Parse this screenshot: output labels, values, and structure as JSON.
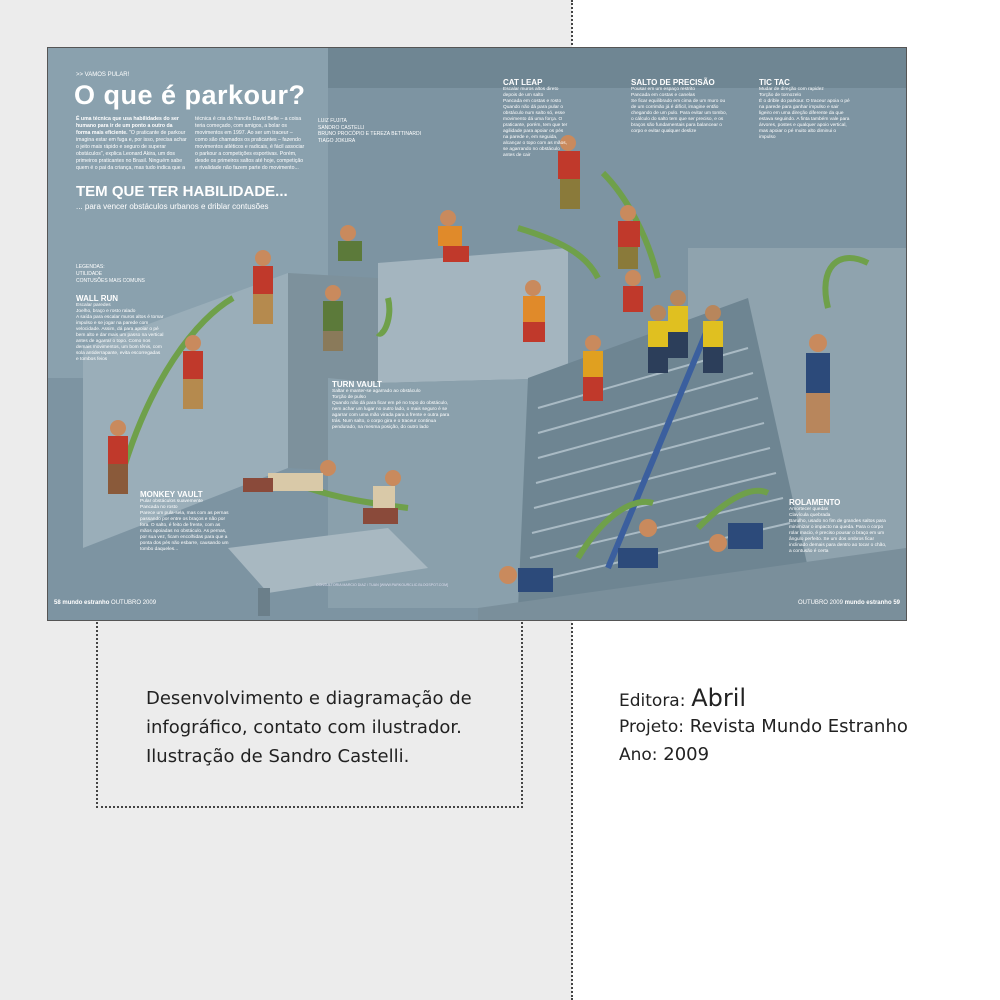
{
  "infographic": {
    "kicker": ">> VAMOS PULAR!",
    "title": "O que é parkour?",
    "intro_bold": "É uma técnica que usa habilidades do ser humano para ir de um ponto a outro da forma mais eficiente.",
    "intro_text": "\"O praticante de parkour imagina estar em fuga e, por isso, precisa achar o jeito mais rápido e seguro de superar obstáculos\", explica Leonard Akira, um dos primeiros praticantes no Brasil. Ninguém sabe quem é o pai da criança, mas tudo indica que a técnica é cria do francês David Belle – a coisa teria começado, com amigos, a bolar os movimentos em 1997. Ao ser um traceur – como são chamados os praticantes – fazendo movimentos atléticos e radicais, é fácil associar o parkour a competições esportivas. Porém, desde os primeiros saltos até hoje, competição e rivalidade não fazem parte do movimento...",
    "credits": [
      "LUIZ FUJITA",
      "SANDRO CASTELLI",
      "BRUNO PROCÓPIO E TEREZA BETTINARDI",
      "TIAGO JOKURA"
    ],
    "subhead": "TEM QUE TER HABILIDADE...",
    "subsubhead": "... para vencer obstáculos urbanos e driblar contusões",
    "legend": {
      "title": "LEGENDAS:",
      "items": [
        "UTILIDADE",
        "CONTUSÕES MAIS COMUNS"
      ]
    },
    "sections": [
      {
        "title": "WALL RUN",
        "utility": "Escalar paredes",
        "injury": "Joelho, braço e rosto ralado",
        "body": "A saída para escalar muros altos é tomar impulso e se jogar na parede com velocidade. Assim, dá para apoiar o pé bem alto e dar mais um passo na vertical antes de agarrar o topo. Como nos demais movimentos, um bom tênis, com sola antiderrapante, evita escorregadas e tombos feios"
      },
      {
        "title": "MONKEY VAULT",
        "utility": "Pular obstáculos suavemente",
        "injury": "Pancada no rosto",
        "body": "Parece um pula-sela, mas com as pernas passando por entre os braços e não por fora. O salto, é feito de frente, com as mãos apoiadas no obstáculo. As pernas, por sua vez, ficam encolhidas para que a ponta dos pés não esbarre, causando um tombo daqueles..."
      },
      {
        "title": "TURN VAULT",
        "utility": "Saltar e manter-se agarrado ao obstáculo",
        "injury": "Torção de pulso",
        "body": "Quando não dá para ficar em pé no topo do obstáculo, nem achar um lugar no outro lado, o mais seguro é se agarrar com uma mão virada para a frente e outra para trás. Num salto, o corpo gira e o traceur continua pendurado, na mesma posição, do outro lado"
      },
      {
        "title": "CAT LEAP",
        "utility": "Escalar muros altos direto depois de um salto",
        "injury": "Pancada em costas e rosto",
        "body": "Quando não dá para pular o obstáculo num salto só, esse movimento dá uma força. O praticante, porém, tem que ter agilidade para apoiar os pés na parede e, em seguida, alcançar o topo com as mãos, se agarrando no obstáculo antes de cair"
      },
      {
        "title": "SALTO DE PRECISÃO",
        "utility": "Pousar em um espaço restrito",
        "injury": "Pancada em costas e canelas",
        "body": "Se ficar equilibrado em cima de um muro ou de um corrimão já é difícil, imagine então chegando de um pulo. Para evitar um tombo, o cálculo do salto tem que ser preciso, e os braços são fundamentais para balancear o corpo e evitar qualquer deslize"
      },
      {
        "title": "TIC TAC",
        "utility": "Mudar de direção com rapidez",
        "injury": "Torção de tornozelo",
        "body": "É o drible do parkour. O traceur apoia o pé na parede para ganhar impulso e sair ligeiro em uma direção diferente da que estava seguindo. A finta também vale para árvores, postes e qualquer apoio vertical, mas apoiar o pé muito alto diminui o impulso"
      },
      {
        "title": "ROLAMENTO",
        "utility": "Amortecer quedas",
        "injury": "Clavícula quebrada",
        "body": "Barulho, usado no fim de grandes saltos para minimizar o impacto na queda. Para o corpo rolar macio, é preciso pousar o braço em um ângulo perfeito. Se um dos ombros ficar inclinado demais para dentro ao tocar o chão, a contusão é certa"
      }
    ],
    "footer_left_page": "58",
    "footer_left_brand": "mundo estranho",
    "footer_left_edition": "OUTUBRO 2009",
    "footer_right_edition": "OUTUBRO 2009",
    "footer_right_brand": "mundo estranho",
    "footer_right_page": "59",
    "illustration_credit": "CONSULTORIA MARCIO DIAZ / TUAN [WWW.PARKOURCLIC.BLOGSPOT.COM]"
  },
  "caption": "Desenvolvimento e diagramação de infográfico, contato com ilustrador. Ilustração de Sandro Castelli.",
  "info": {
    "editora_label": "Editora:",
    "editora_value": "Abril",
    "projeto_label": "Projeto:",
    "projeto_value": "Revista Mundo Estranho",
    "ano_label": "Ano:",
    "ano_value": "2009"
  },
  "colors": {
    "left_background": "#ececec",
    "scene_wall": "#7f96a4",
    "arrow_green": "#6fa04a",
    "figure_red": "#c0392b"
  }
}
